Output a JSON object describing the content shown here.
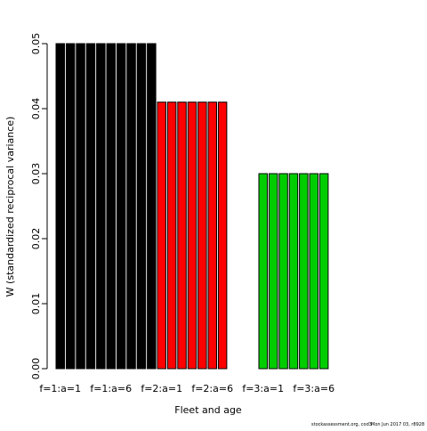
{
  "chart_data": {
    "type": "bar",
    "y_label": "W (standardized reciprocal variance)",
    "x_label": "Fleet and age",
    "footer": [
      "stockassessment.org, cod3",
      "Mon Jun 2017 03, r8928"
    ],
    "categories": [
      "f=1:a=1",
      null,
      null,
      null,
      null,
      "f=1:a=6",
      null,
      null,
      null,
      null,
      "f=2:a=1",
      null,
      null,
      null,
      null,
      "f=2:a=6",
      null,
      null,
      null,
      null,
      "f=3:a=1",
      null,
      null,
      null,
      null,
      "f=3:a=6",
      null,
      null,
      null,
      null
    ],
    "values": [
      0.05,
      0.05,
      0.05,
      0.05,
      0.05,
      0.05,
      0.05,
      0.05,
      0.05,
      0.05,
      0.041,
      0.041,
      0.041,
      0.041,
      0.041,
      0.041,
      0.041,
      0,
      0,
      0,
      0.03,
      0.03,
      0.03,
      0.03,
      0.03,
      0.03,
      0.03,
      0,
      0,
      0
    ],
    "colors": [
      "#000000",
      "#000000",
      "#000000",
      "#000000",
      "#000000",
      "#000000",
      "#000000",
      "#000000",
      "#000000",
      "#000000",
      "#ff0000",
      "#ff0000",
      "#ff0000",
      "#ff0000",
      "#ff0000",
      "#ff0000",
      "#ff0000",
      "#ff0000",
      "#ff0000",
      "#ff0000",
      "#00cd00",
      "#00cd00",
      "#00cd00",
      "#00cd00",
      "#00cd00",
      "#00cd00",
      "#00cd00",
      "#00cd00",
      "#00cd00",
      "#00cd00"
    ],
    "ylim": [
      0,
      0.05
    ],
    "yticks": [
      {
        "value": 0,
        "label": "0.00"
      },
      0.01,
      0.02,
      0.03,
      0.04,
      0.05
    ]
  }
}
